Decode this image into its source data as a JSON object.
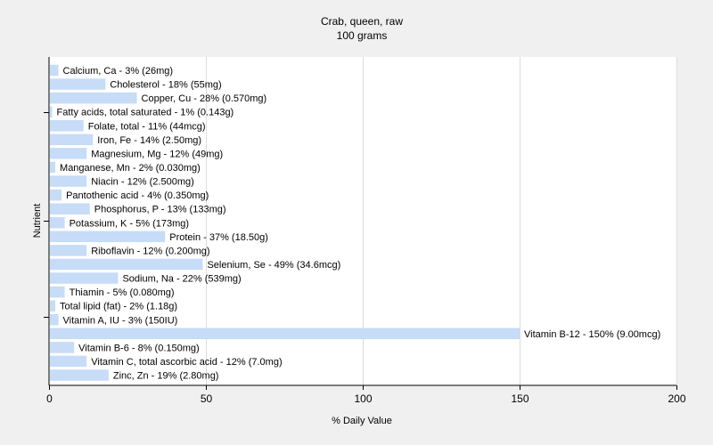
{
  "chart_data": {
    "type": "bar",
    "orientation": "horizontal",
    "title": "Crab, queen, raw",
    "subtitle": "100 grams",
    "xlabel": "% Daily Value",
    "ylabel": "Nutrient",
    "xlim": [
      0,
      200
    ],
    "xticks": [
      "0",
      "50",
      "100",
      "150",
      "200"
    ],
    "grid": true,
    "bar_color": "#c6dcf7",
    "categories": [
      "Calcium, Ca - 3% (26mg)",
      "Cholesterol - 18% (55mg)",
      "Copper, Cu - 28% (0.570mg)",
      "Fatty acids, total saturated - 1% (0.143g)",
      "Folate, total - 11% (44mcg)",
      "Iron, Fe - 14% (2.50mg)",
      "Magnesium, Mg - 12% (49mg)",
      "Manganese, Mn - 2% (0.030mg)",
      "Niacin - 12% (2.500mg)",
      "Pantothenic acid - 4% (0.350mg)",
      "Phosphorus, P - 13% (133mg)",
      "Potassium, K - 5% (173mg)",
      "Protein - 37% (18.50g)",
      "Riboflavin - 12% (0.200mg)",
      "Selenium, Se - 49% (34.6mcg)",
      "Sodium, Na - 22% (539mg)",
      "Thiamin - 5% (0.080mg)",
      "Total lipid (fat) - 2% (1.18g)",
      "Vitamin A, IU - 3% (150IU)",
      "Vitamin B-12 - 150% (9.00mcg)",
      "Vitamin B-6 - 8% (0.150mg)",
      "Vitamin C, total ascorbic acid - 12% (7.0mg)",
      "Zinc, Zn - 19% (2.80mg)"
    ],
    "values": [
      3,
      18,
      28,
      1,
      11,
      14,
      12,
      2,
      12,
      4,
      13,
      5,
      37,
      12,
      49,
      22,
      5,
      2,
      3,
      150,
      8,
      12,
      19
    ]
  }
}
